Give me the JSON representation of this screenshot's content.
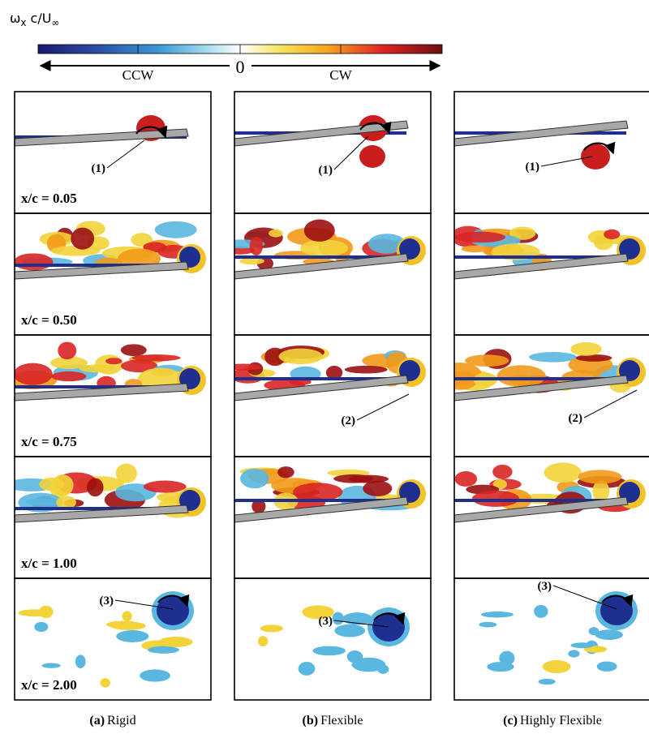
{
  "colorbar": {
    "symbol": "ω",
    "symbol_sub": "x",
    "rest": "c/U",
    "rest_sub": "∞",
    "left": "CCW",
    "center": "0",
    "right": "CW"
  },
  "columns": [
    {
      "tag": "(a)",
      "name": "Rigid"
    },
    {
      "tag": "(b)",
      "name": "Flexible"
    },
    {
      "tag": "(c)",
      "name": "Highly Flexible"
    }
  ],
  "rows": [
    "x/c = 0.05",
    "x/c = 0.50",
    "x/c = 0.75",
    "x/c = 1.00",
    "x/c = 2.00"
  ],
  "annotations": [
    [
      "(1)",
      "(1)",
      "(1)"
    ],
    [
      null,
      null,
      null
    ],
    [
      null,
      "(2)",
      "(2)"
    ],
    [
      null,
      null,
      null
    ],
    [
      "(3)",
      "(3)",
      "(3)"
    ]
  ]
}
